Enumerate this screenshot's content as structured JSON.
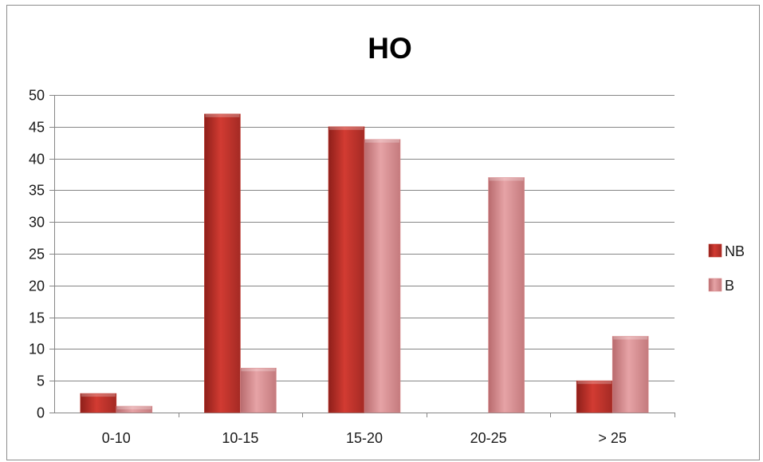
{
  "chart_data": {
    "type": "bar",
    "title": "HO",
    "xlabel": "",
    "ylabel": "",
    "categories": [
      "0-10",
      "10-15",
      "15-20",
      "20-25",
      "> 25"
    ],
    "series": [
      {
        "name": "NB",
        "values": [
          3,
          47,
          45,
          0,
          5
        ],
        "color": "#c0392f"
      },
      {
        "name": "B",
        "values": [
          1,
          7,
          43,
          37,
          12
        ],
        "color": "#d98a8c"
      }
    ],
    "ylim": [
      0,
      50
    ],
    "yticks": [
      0,
      5,
      10,
      15,
      20,
      25,
      30,
      35,
      40,
      45,
      50
    ],
    "grid": true,
    "legend_position": "right"
  }
}
